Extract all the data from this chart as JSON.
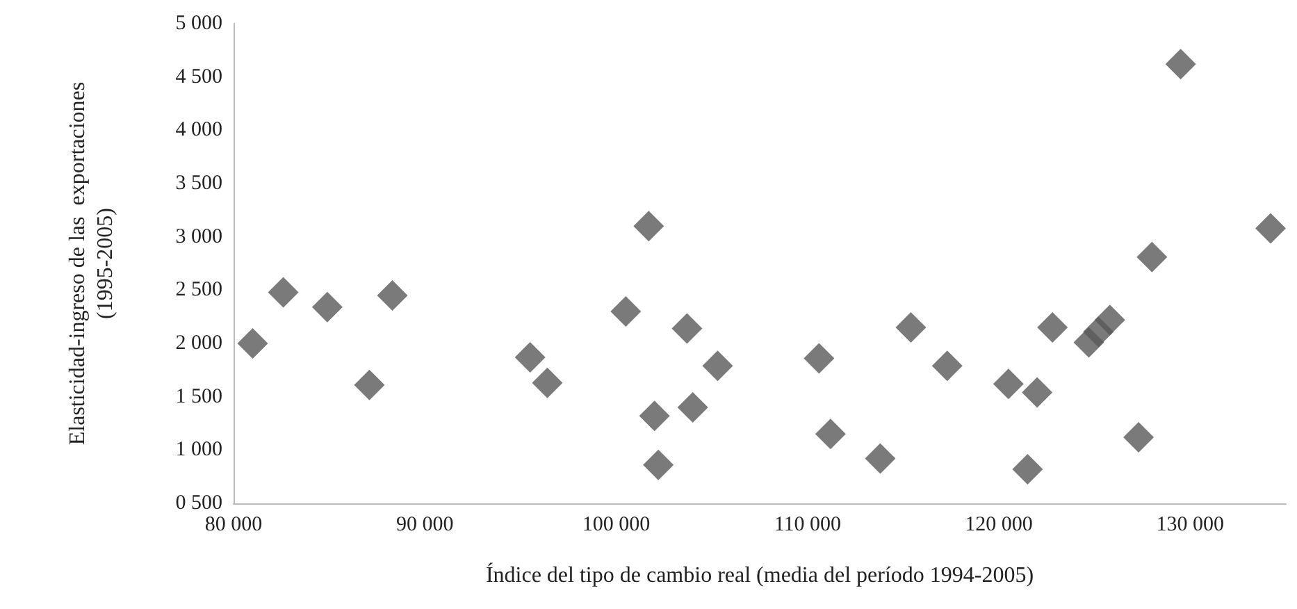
{
  "chart_data": {
    "type": "scatter",
    "xlabel": "Índice del tipo de cambio real (media del período 1994-2005)",
    "ylabel": "Elasticidad-ingreso de las  exportaciones\n(1995-2005)",
    "x": [
      81000,
      82600,
      84900,
      87100,
      88300,
      95500,
      96400,
      100500,
      101700,
      102000,
      102200,
      103700,
      104000,
      105300,
      110600,
      111200,
      113800,
      115400,
      117300,
      120500,
      121500,
      122000,
      122800,
      124700,
      125200,
      125800,
      127300,
      128000,
      129500,
      134200
    ],
    "values": [
      2000,
      2480,
      2340,
      1610,
      2450,
      1870,
      1630,
      2300,
      3100,
      1320,
      860,
      2140,
      1400,
      1790,
      1860,
      1150,
      920,
      2150,
      1790,
      1620,
      820,
      1540,
      2150,
      2010,
      2110,
      2220,
      1120,
      2810,
      4620,
      3080
    ],
    "color": "#595959",
    "marker": "diamond",
    "grid": false,
    "xlim": [
      80000,
      135000
    ],
    "xticks": [
      {
        "value": 80000,
        "label": "80 000"
      },
      {
        "value": 90000,
        "label": "90 000"
      },
      {
        "value": 100000,
        "label": "100 000"
      },
      {
        "value": 110000,
        "label": "110 000"
      },
      {
        "value": 120000,
        "label": "120 000"
      },
      {
        "value": 130000,
        "label": "130 000"
      }
    ],
    "ylim": [
      500,
      5000
    ],
    "yticks": [
      {
        "value": 500,
        "label": "0 500"
      },
      {
        "value": 1000,
        "label": "1 000"
      },
      {
        "value": 1500,
        "label": "1 500"
      },
      {
        "value": 2000,
        "label": "2 000"
      },
      {
        "value": 2500,
        "label": "2 500"
      },
      {
        "value": 3000,
        "label": "3 000"
      },
      {
        "value": 3500,
        "label": "3 500"
      },
      {
        "value": 4000,
        "label": "4 000"
      },
      {
        "value": 4500,
        "label": "4 500"
      },
      {
        "value": 5000,
        "label": "5 000"
      }
    ]
  }
}
